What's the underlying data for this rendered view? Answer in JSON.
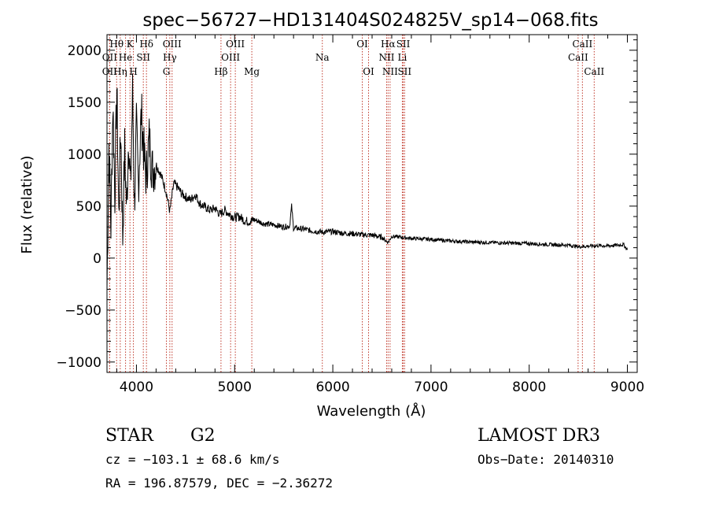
{
  "chart_data": {
    "type": "line",
    "title": "spec−56727−HD131404S024825V_sp14−068.fits",
    "xlabel": "Wavelength (Å)",
    "ylabel": "Flux (relative)",
    "xlim": [
      3700,
      9100
    ],
    "ylim": [
      -1100,
      2150
    ],
    "xticks": [
      4000,
      5000,
      6000,
      7000,
      8000,
      9000
    ],
    "xtick_labels": [
      "4000",
      "5000",
      "6000",
      "7000",
      "8000",
      "9000"
    ],
    "yticks": [
      -1000,
      -500,
      0,
      500,
      1000,
      1500,
      2000
    ],
    "ytick_labels": [
      "−1000",
      "−500",
      "0",
      "500",
      "1000",
      "1500",
      "2000"
    ],
    "series": [
      {
        "name": "flux",
        "x": [
          3700,
          3720,
          3740,
          3760,
          3780,
          3800,
          3820,
          3840,
          3860,
          3880,
          3900,
          3920,
          3940,
          3960,
          3980,
          4000,
          4020,
          4050,
          4080,
          4100,
          4130,
          4160,
          4200,
          4250,
          4300,
          4340,
          4380,
          4420,
          4460,
          4500,
          4550,
          4600,
          4650,
          4700,
          4750,
          4800,
          4850,
          4900,
          4950,
          5000,
          5050,
          5100,
          5150,
          5200,
          5300,
          5400,
          5500,
          5560,
          5580,
          5600,
          5700,
          5800,
          5900,
          6000,
          6100,
          6200,
          6300,
          6400,
          6500,
          6562,
          6600,
          6700,
          6800,
          6900,
          7000,
          7200,
          7400,
          7600,
          7800,
          8000,
          8200,
          8400,
          8500,
          8600,
          8700,
          8800,
          8900,
          8960,
          9000
        ],
        "y": [
          -300,
          1100,
          300,
          1500,
          600,
          1650,
          400,
          1250,
          200,
          1050,
          450,
          1200,
          650,
          1600,
          500,
          1250,
          700,
          1400,
          950,
          780,
          1150,
          850,
          900,
          800,
          650,
          450,
          720,
          680,
          620,
          590,
          560,
          610,
          520,
          490,
          460,
          480,
          420,
          460,
          420,
          390,
          400,
          360,
          350,
          370,
          330,
          320,
          300,
          310,
          500,
          290,
          280,
          260,
          250,
          255,
          240,
          235,
          225,
          220,
          200,
          150,
          210,
          200,
          190,
          185,
          180,
          165,
          155,
          150,
          145,
          140,
          130,
          125,
          110,
          115,
          120,
          118,
          125,
          130,
          80
        ]
      }
    ],
    "lines": [
      {
        "name": "Hθ",
        "wave": 3798,
        "row": 0
      },
      {
        "name": "OII",
        "wave": 3727,
        "row": 1
      },
      {
        "name": "OII",
        "wave": 3727,
        "row": 2
      },
      {
        "name": "He",
        "wave": 3889,
        "row": 1
      },
      {
        "name": "Hη",
        "wave": 3835,
        "row": 2
      },
      {
        "name": "K",
        "wave": 3934,
        "row": 0
      },
      {
        "name": "H",
        "wave": 3969,
        "row": 2
      },
      {
        "name": "SII",
        "wave": 4070,
        "row": 1
      },
      {
        "name": "Hδ",
        "wave": 4102,
        "row": 0
      },
      {
        "name": "OIII",
        "wave": 4363,
        "row": 0
      },
      {
        "name": "Hγ",
        "wave": 4340,
        "row": 1
      },
      {
        "name": "G",
        "wave": 4305,
        "row": 2
      },
      {
        "name": "Hβ",
        "wave": 4861,
        "row": 2
      },
      {
        "name": "OIII",
        "wave": 5007,
        "row": 0
      },
      {
        "name": "OIII",
        "wave": 4959,
        "row": 1
      },
      {
        "name": "Mg",
        "wave": 5175,
        "row": 2
      },
      {
        "name": "Na",
        "wave": 5893,
        "row": 1
      },
      {
        "name": "OI",
        "wave": 6300,
        "row": 0
      },
      {
        "name": "OI",
        "wave": 6364,
        "row": 2
      },
      {
        "name": "Hα",
        "wave": 6563,
        "row": 0
      },
      {
        "name": "NII",
        "wave": 6548,
        "row": 1
      },
      {
        "name": "NII",
        "wave": 6583,
        "row": 2
      },
      {
        "name": "SII",
        "wave": 6717,
        "row": 0
      },
      {
        "name": "Li",
        "wave": 6708,
        "row": 1
      },
      {
        "name": "SII",
        "wave": 6731,
        "row": 2
      },
      {
        "name": "CaII",
        "wave": 8542,
        "row": 0
      },
      {
        "name": "CaII",
        "wave": 8498,
        "row": 1
      },
      {
        "name": "CaII",
        "wave": 8662,
        "row": 2
      }
    ]
  },
  "info": {
    "class": "STAR",
    "subclass": "G2",
    "survey": "LAMOST DR3",
    "cz": "cz = −103.1 ± 68.6 km/s",
    "obs_date": "Obs−Date: 20140310",
    "radec": "RA = 196.87579, DEC =  −2.36272"
  },
  "colors": {
    "line_marker": "#c0392b",
    "spectrum": "#000000",
    "axis": "#000000"
  }
}
